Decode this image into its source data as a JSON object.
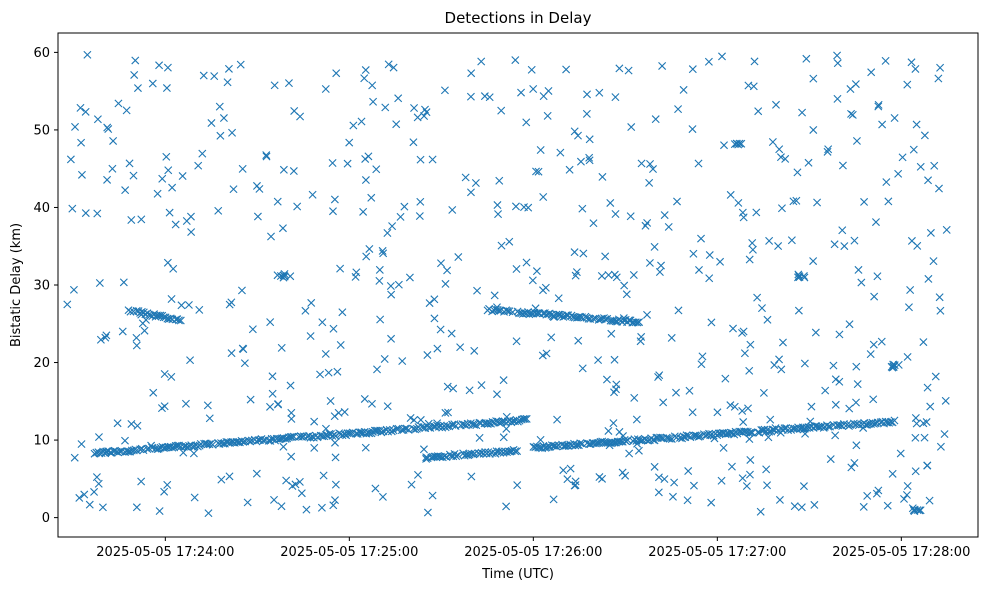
{
  "chart_data": {
    "type": "scatter",
    "title": "Detections in Delay",
    "xlabel": "Time (UTC)",
    "ylabel": "Bistatic Delay (km)",
    "x_axis": {
      "type": "time",
      "range": [
        "2025-05-05 17:23:25",
        "2025-05-05 17:28:25"
      ],
      "ticks": [
        "2025-05-05 17:24:00",
        "2025-05-05 17:25:00",
        "2025-05-05 17:26:00",
        "2025-05-05 17:27:00",
        "2025-05-05 17:28:00"
      ]
    },
    "y_axis": {
      "range": [
        -2.5,
        62.5
      ],
      "ticks": [
        0,
        10,
        20,
        30,
        40,
        50,
        60
      ]
    },
    "grid": false,
    "marker": "x",
    "color": "#1f77b4",
    "tracks": [
      {
        "start": "2025-05-05 17:23:37",
        "end": "2025-05-05 17:25:58",
        "delay_start": 8.3,
        "delay_end": 12.6
      },
      {
        "start": "2025-05-05 17:25:25",
        "end": "2025-05-05 17:25:55",
        "delay_start": 7.8,
        "delay_end": 8.6
      },
      {
        "start": "2025-05-05 17:26:00",
        "end": "2025-05-05 17:27:58",
        "delay_start": 9.0,
        "delay_end": 12.4
      },
      {
        "start": "2025-05-05 17:23:48",
        "end": "2025-05-05 17:24:06",
        "delay_start": 26.7,
        "delay_end": 25.4
      },
      {
        "start": "2025-05-05 17:25:45",
        "end": "2025-05-05 17:26:35",
        "delay_start": 26.8,
        "delay_end": 25.2
      }
    ],
    "clusters": [
      {
        "time": "2025-05-05 17:24:38",
        "delay": 31.2
      },
      {
        "time": "2025-05-05 17:27:27",
        "delay": 31.2
      },
      {
        "time": "2025-05-05 17:27:07",
        "delay": 48.2
      },
      {
        "time": "2025-05-05 17:27:58",
        "delay": 19.5
      },
      {
        "time": "2025-05-05 17:28:05",
        "delay": 1.0
      }
    ],
    "noise": {
      "range_time": [
        "2025-05-05 17:23:28",
        "2025-05-05 17:28:15"
      ],
      "range_delay": [
        0.5,
        59.8
      ],
      "count": 640
    }
  }
}
